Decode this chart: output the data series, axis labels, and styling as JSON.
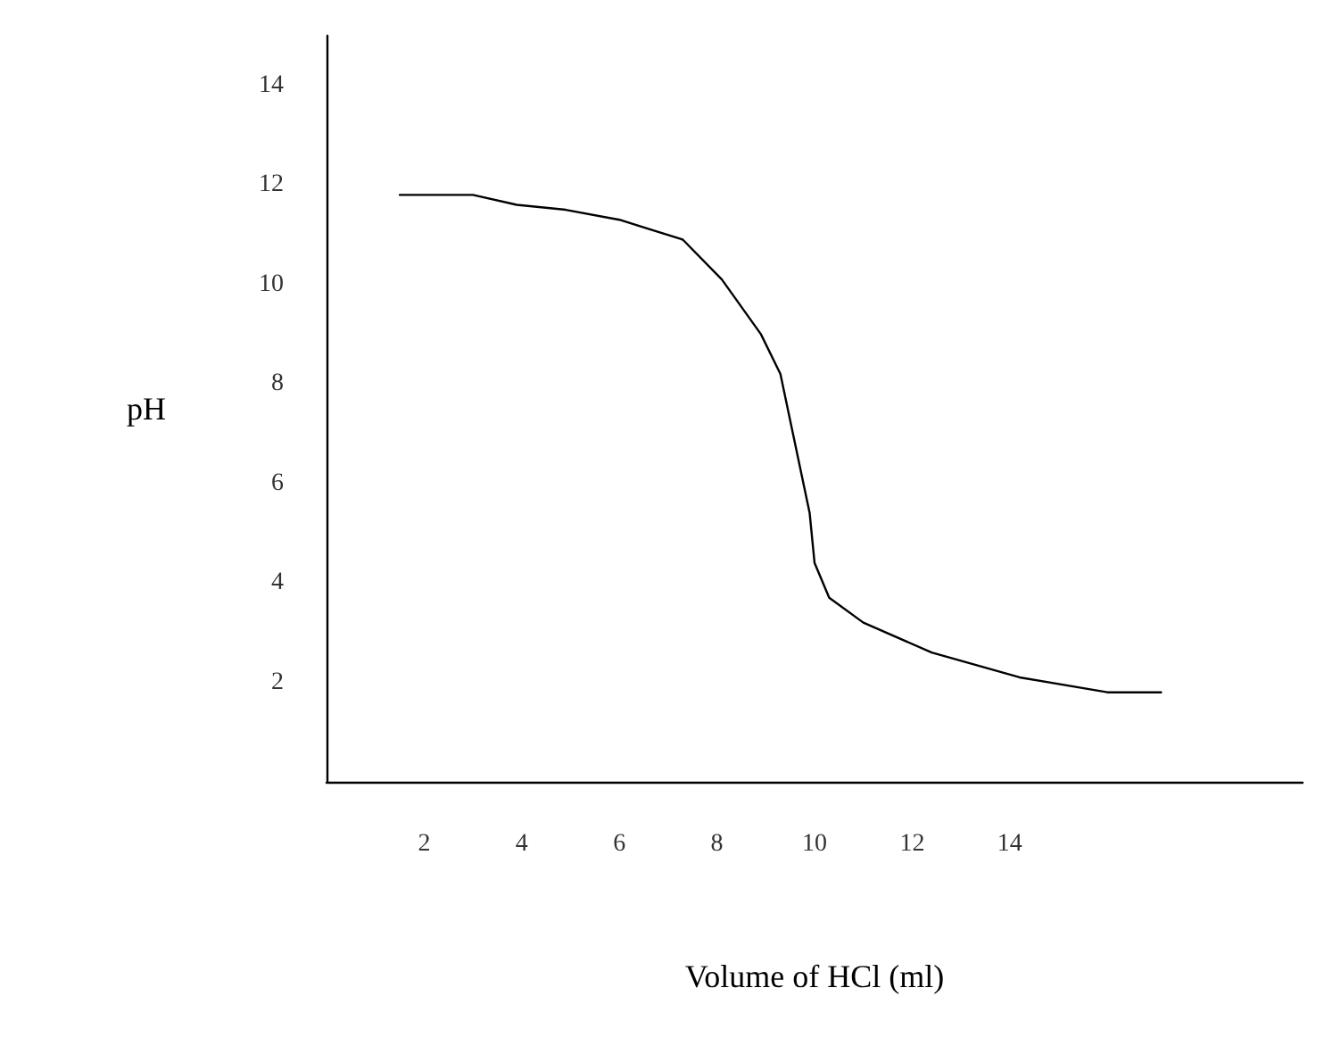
{
  "chart_data": {
    "type": "line",
    "xlabel": "Volume of HCl (ml)",
    "ylabel": "pH",
    "xlim": [
      0,
      20
    ],
    "ylim": [
      0,
      15
    ],
    "xticks": [
      2,
      4,
      6,
      8,
      10,
      12,
      14
    ],
    "yticks": [
      2,
      4,
      6,
      8,
      10,
      12,
      14
    ],
    "grid": false,
    "marker": "none",
    "line_style": "solid",
    "series": [
      {
        "color": "#000000",
        "x": [
          1.5,
          3.0,
          3.9,
          4.9,
          6.0,
          7.3,
          8.1,
          8.9,
          9.3,
          9.6,
          9.9,
          10.0,
          10.3,
          11.0,
          12.4,
          14.2,
          16.0,
          17.1
        ],
        "values": [
          11.8,
          11.8,
          11.6,
          11.5,
          11.3,
          10.9,
          10.1,
          9.0,
          8.2,
          6.8,
          5.4,
          4.4,
          3.7,
          3.2,
          2.6,
          2.1,
          1.8,
          1.8
        ]
      }
    ]
  }
}
